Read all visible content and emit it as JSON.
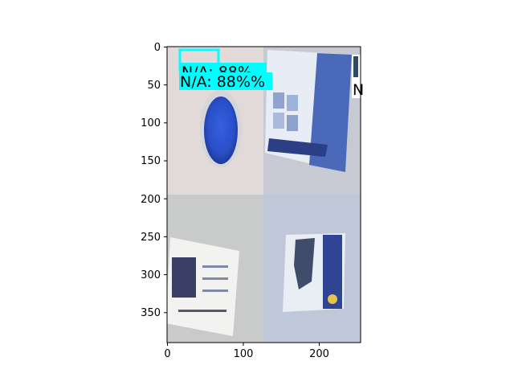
{
  "figure": {
    "panels": [
      {
        "name": "blue-plate",
        "background": "#e2d9d9"
      },
      {
        "name": "brochure-top-right",
        "background": "#c7cad2"
      },
      {
        "name": "document-bottom-left",
        "background": "#c9cbcb"
      },
      {
        "name": "brochure-bottom-right",
        "background": "#bfc8d8"
      }
    ],
    "detections": [
      {
        "text_back": "N/A: 88%",
        "text_front": "N/A: 88%%",
        "color": "#00ffff"
      },
      {
        "text": "N",
        "color": "#00ffff"
      }
    ],
    "x_ticks": [
      "0",
      "100",
      "200"
    ],
    "y_ticks": [
      "0",
      "50",
      "100",
      "150",
      "200",
      "250",
      "300",
      "350"
    ],
    "colors": {
      "box": "#00ffff",
      "plate_blue": "#2a4fc8",
      "brochure_blue": "#4a69b8",
      "axis": "#000000"
    }
  }
}
